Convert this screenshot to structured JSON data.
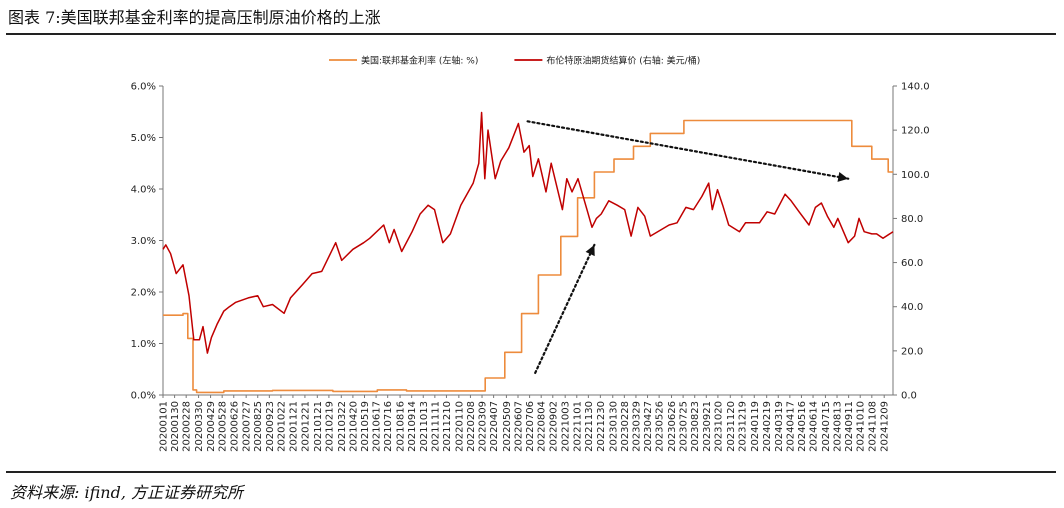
{
  "page": {
    "title": "图表 7:美国联邦基金利率的提高压制原油价格的上涨",
    "source": "资料来源: ifind, 方正证券研究所"
  },
  "chart_data": {
    "type": "line",
    "legend_position": "top-center",
    "grid": false,
    "y_left": {
      "range": [
        0,
        6
      ],
      "ticks": [
        0,
        1,
        2,
        3,
        4,
        5,
        6
      ],
      "tick_labels": [
        "0.0%",
        "1.0%",
        "2.0%",
        "3.0%",
        "4.0%",
        "5.0%",
        "6.0%"
      ]
    },
    "y_right": {
      "range": [
        0,
        140
      ],
      "ticks": [
        0,
        20,
        40,
        60,
        80,
        100,
        120,
        140
      ],
      "tick_labels": [
        "0.0",
        "20.0",
        "40.0",
        "60.0",
        "80.0",
        "100.0",
        "120.0",
        "140.0"
      ]
    },
    "x_range": [
      "2020-01-01",
      "2024-12-31"
    ],
    "x_tick_labels": [
      "20200101",
      "20200130",
      "20200228",
      "20200330",
      "20200429",
      "20200528",
      "20200626",
      "20200727",
      "20200825",
      "20200923",
      "20201022",
      "20201121",
      "20201221",
      "20210121",
      "20210219",
      "20210322",
      "20210420",
      "20210519",
      "20210617",
      "20210716",
      "20210816",
      "20210914",
      "20211013",
      "20211111",
      "20211210",
      "20220110",
      "20220208",
      "20220309",
      "20220407",
      "20220509",
      "20220607",
      "20220706",
      "20220804",
      "20220902",
      "20221003",
      "20221101",
      "20221130",
      "20221230",
      "20230130",
      "20230228",
      "20230329",
      "20230427",
      "20230526",
      "20230626",
      "20230725",
      "20230823",
      "20230921",
      "20231020",
      "20231120",
      "20231219",
      "20240119",
      "20240219",
      "20240319",
      "20240417",
      "20240516",
      "20240614",
      "20240715",
      "20240813",
      "20240911",
      "20241010",
      "20241108",
      "20241209"
    ],
    "series": [
      {
        "name": "美国:联邦基金利率 (左轴: %)",
        "axis": "left",
        "color": "#ED8B3C",
        "step": true,
        "points": [
          [
            "2020-01-01",
            1.55
          ],
          [
            "2020-02-20",
            1.58
          ],
          [
            "2020-03-03",
            1.1
          ],
          [
            "2020-03-16",
            0.1
          ],
          [
            "2020-03-25",
            0.05
          ],
          [
            "2020-06-01",
            0.08
          ],
          [
            "2020-10-01",
            0.09
          ],
          [
            "2021-03-01",
            0.07
          ],
          [
            "2021-06-20",
            0.1
          ],
          [
            "2021-09-01",
            0.08
          ],
          [
            "2022-03-17",
            0.33
          ],
          [
            "2022-05-05",
            0.83
          ],
          [
            "2022-06-16",
            1.58
          ],
          [
            "2022-07-28",
            2.33
          ],
          [
            "2022-09-22",
            3.08
          ],
          [
            "2022-11-03",
            3.83
          ],
          [
            "2022-12-15",
            4.33
          ],
          [
            "2023-02-02",
            4.58
          ],
          [
            "2023-03-23",
            4.83
          ],
          [
            "2023-05-04",
            5.08
          ],
          [
            "2023-07-27",
            5.33
          ],
          [
            "2024-09-19",
            4.83
          ],
          [
            "2024-11-08",
            4.58
          ],
          [
            "2024-12-19",
            4.33
          ],
          [
            "2024-12-31",
            4.33
          ]
        ]
      },
      {
        "name": "布伦特原油期货结算价 (右轴: 美元/桶)",
        "axis": "right",
        "color": "#C00000",
        "points": [
          [
            "2020-01-01",
            66
          ],
          [
            "2020-01-08",
            68
          ],
          [
            "2020-01-20",
            64
          ],
          [
            "2020-02-03",
            55
          ],
          [
            "2020-02-20",
            59
          ],
          [
            "2020-03-06",
            45
          ],
          [
            "2020-03-18",
            25
          ],
          [
            "2020-04-01",
            25
          ],
          [
            "2020-04-10",
            31
          ],
          [
            "2020-04-21",
            19
          ],
          [
            "2020-05-01",
            26
          ],
          [
            "2020-05-15",
            32
          ],
          [
            "2020-06-01",
            38
          ],
          [
            "2020-06-15",
            40
          ],
          [
            "2020-07-01",
            42
          ],
          [
            "2020-08-01",
            44
          ],
          [
            "2020-08-25",
            45
          ],
          [
            "2020-09-08",
            40
          ],
          [
            "2020-10-01",
            41
          ],
          [
            "2020-10-30",
            37
          ],
          [
            "2020-11-15",
            44
          ],
          [
            "2020-12-15",
            50
          ],
          [
            "2021-01-08",
            55
          ],
          [
            "2021-02-01",
            56
          ],
          [
            "2021-03-08",
            69
          ],
          [
            "2021-03-23",
            61
          ],
          [
            "2021-04-20",
            66
          ],
          [
            "2021-05-17",
            69
          ],
          [
            "2021-06-01",
            71
          ],
          [
            "2021-07-06",
            77
          ],
          [
            "2021-07-20",
            69
          ],
          [
            "2021-08-01",
            75
          ],
          [
            "2021-08-20",
            65
          ],
          [
            "2021-09-15",
            74
          ],
          [
            "2021-10-05",
            82
          ],
          [
            "2021-10-25",
            86
          ],
          [
            "2021-11-10",
            84
          ],
          [
            "2021-12-01",
            69
          ],
          [
            "2021-12-20",
            73
          ],
          [
            "2022-01-15",
            86
          ],
          [
            "2022-02-15",
            96
          ],
          [
            "2022-03-01",
            105
          ],
          [
            "2022-03-08",
            128
          ],
          [
            "2022-03-16",
            98
          ],
          [
            "2022-03-24",
            120
          ],
          [
            "2022-04-11",
            98
          ],
          [
            "2022-04-25",
            106
          ],
          [
            "2022-05-15",
            112
          ],
          [
            "2022-06-08",
            123
          ],
          [
            "2022-06-22",
            110
          ],
          [
            "2022-07-05",
            113
          ],
          [
            "2022-07-14",
            99
          ],
          [
            "2022-07-28",
            107
          ],
          [
            "2022-08-16",
            92
          ],
          [
            "2022-08-29",
            105
          ],
          [
            "2022-09-26",
            84
          ],
          [
            "2022-10-07",
            98
          ],
          [
            "2022-10-20",
            92
          ],
          [
            "2022-11-04",
            98
          ],
          [
            "2022-11-28",
            83
          ],
          [
            "2022-12-09",
            76
          ],
          [
            "2022-12-20",
            80
          ],
          [
            "2023-01-01",
            82
          ],
          [
            "2023-01-20",
            88
          ],
          [
            "2023-02-10",
            86
          ],
          [
            "2023-03-01",
            84
          ],
          [
            "2023-03-17",
            72
          ],
          [
            "2023-04-03",
            85
          ],
          [
            "2023-04-20",
            81
          ],
          [
            "2023-05-04",
            72
          ],
          [
            "2023-06-01",
            75
          ],
          [
            "2023-06-20",
            77
          ],
          [
            "2023-07-10",
            78
          ],
          [
            "2023-08-01",
            85
          ],
          [
            "2023-08-20",
            84
          ],
          [
            "2023-09-10",
            90
          ],
          [
            "2023-09-27",
            96
          ],
          [
            "2023-10-06",
            84
          ],
          [
            "2023-10-19",
            93
          ],
          [
            "2023-11-01",
            86
          ],
          [
            "2023-11-16",
            77
          ],
          [
            "2023-12-13",
            74
          ],
          [
            "2023-12-28",
            78
          ],
          [
            "2024-01-15",
            78
          ],
          [
            "2024-02-01",
            78
          ],
          [
            "2024-02-20",
            83
          ],
          [
            "2024-03-10",
            82
          ],
          [
            "2024-04-05",
            91
          ],
          [
            "2024-04-20",
            88
          ],
          [
            "2024-05-10",
            83
          ],
          [
            "2024-06-04",
            77
          ],
          [
            "2024-06-20",
            85
          ],
          [
            "2024-07-05",
            87
          ],
          [
            "2024-07-20",
            81
          ],
          [
            "2024-08-05",
            76
          ],
          [
            "2024-08-15",
            80
          ],
          [
            "2024-09-10",
            69
          ],
          [
            "2024-09-26",
            72
          ],
          [
            "2024-10-07",
            80
          ],
          [
            "2024-10-20",
            74
          ],
          [
            "2024-11-08",
            73
          ],
          [
            "2024-11-20",
            73
          ],
          [
            "2024-12-06",
            71
          ],
          [
            "2024-12-31",
            74
          ]
        ]
      }
    ],
    "annotations": [
      {
        "type": "dotted-arrow",
        "color": "#111111",
        "from": [
          "2022-07-01",
          124
        ],
        "to": [
          "2024-09-10",
          98
        ],
        "axis": "right"
      },
      {
        "type": "dotted-arrow",
        "color": "#111111",
        "from": [
          "2022-07-20",
          10
        ],
        "to": [
          "2022-12-15",
          68
        ],
        "axis": "right"
      }
    ]
  }
}
